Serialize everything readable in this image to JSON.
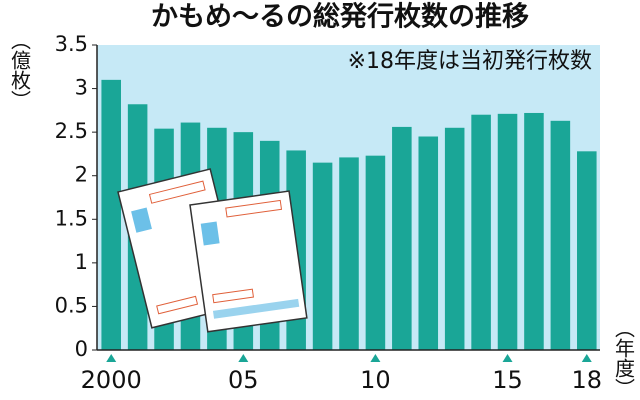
{
  "chart_data": {
    "type": "bar",
    "title": "かもめ～るの総発行枚数の推移",
    "subtitle": "※18年度は当初発行枚数",
    "y_label": "（億枚）",
    "x_label": "（年度）",
    "categories": [
      "2000",
      null,
      null,
      null,
      null,
      "05",
      null,
      null,
      null,
      null,
      "10",
      null,
      null,
      null,
      null,
      "15",
      null,
      null,
      "18"
    ],
    "values": [
      3.1,
      2.82,
      2.54,
      2.61,
      2.55,
      2.5,
      2.4,
      2.29,
      2.15,
      2.21,
      2.23,
      2.56,
      2.45,
      2.55,
      2.7,
      2.71,
      2.72,
      2.63,
      2.28
    ],
    "color": "#1aa697",
    "background": "#c6e9f6",
    "ylim": [
      0,
      3.5
    ],
    "yticks": [
      0,
      0.5,
      1,
      1.5,
      2,
      2.5,
      3,
      3.5
    ],
    "grid": false
  }
}
